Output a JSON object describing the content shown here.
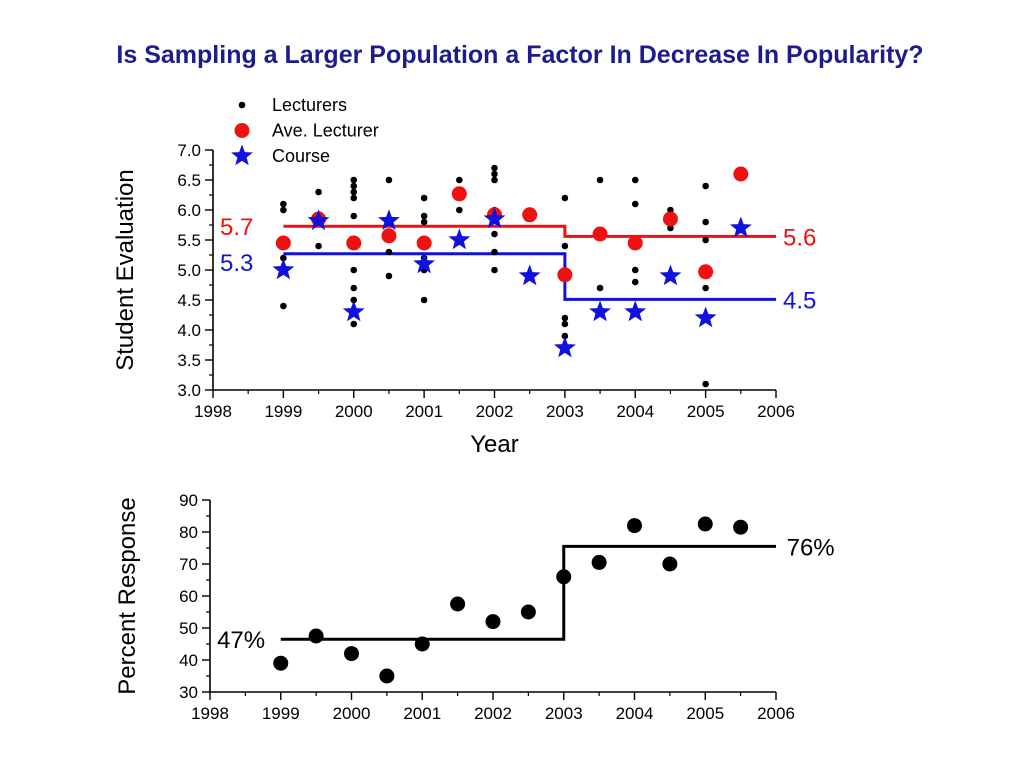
{
  "title": "Is Sampling a Larger Population a Factor In Decrease In Popularity?",
  "chart_data": [
    {
      "type": "scatter",
      "xlabel": "Year",
      "ylabel": "Student Evaluation",
      "xlim": [
        1998,
        2006
      ],
      "ylim": [
        3.0,
        7.0
      ],
      "xticks": [
        "1998",
        "1999",
        "2000",
        "2001",
        "2002",
        "2003",
        "2004",
        "2005",
        "2006"
      ],
      "yticks": [
        "3.0",
        "3.5",
        "4.0",
        "4.5",
        "5.0",
        "5.5",
        "6.0",
        "6.5",
        "7.0"
      ],
      "legend": {
        "placement": "top-left",
        "entries": [
          {
            "label": "Lecturers",
            "marker": "small-dot",
            "color": "#000000"
          },
          {
            "label": "Ave. Lecturer",
            "marker": "dot",
            "color": "#ee1111"
          },
          {
            "label": "Course",
            "marker": "star",
            "color": "#1111dd"
          }
        ]
      },
      "series": [
        {
          "name": "Lecturers",
          "marker": "small-dot",
          "color": "#000000",
          "points": [
            [
              1999,
              6.1
            ],
            [
              1999,
              6.0
            ],
            [
              1999,
              5.2
            ],
            [
              1999,
              4.4
            ],
            [
              1999.5,
              6.3
            ],
            [
              1999.5,
              5.4
            ],
            [
              2000,
              6.5
            ],
            [
              2000,
              6.4
            ],
            [
              2000,
              6.3
            ],
            [
              2000,
              6.2
            ],
            [
              2000,
              5.9
            ],
            [
              2000,
              5.0
            ],
            [
              2000,
              4.7
            ],
            [
              2000,
              4.5
            ],
            [
              2000,
              4.1
            ],
            [
              2000.5,
              6.5
            ],
            [
              2000.5,
              5.3
            ],
            [
              2000.5,
              4.9
            ],
            [
              2001,
              6.2
            ],
            [
              2001,
              5.9
            ],
            [
              2001,
              5.8
            ],
            [
              2001,
              5.2
            ],
            [
              2001,
              5.0
            ],
            [
              2001,
              4.5
            ],
            [
              2001.5,
              6.5
            ],
            [
              2001.5,
              6.0
            ],
            [
              2002,
              6.7
            ],
            [
              2002,
              6.6
            ],
            [
              2002,
              6.5
            ],
            [
              2002,
              6.0
            ],
            [
              2002,
              5.6
            ],
            [
              2002,
              5.3
            ],
            [
              2002,
              5.0
            ],
            [
              2003,
              6.2
            ],
            [
              2003,
              5.4
            ],
            [
              2003,
              4.2
            ],
            [
              2003,
              4.1
            ],
            [
              2003,
              3.9
            ],
            [
              2003.5,
              6.5
            ],
            [
              2003.5,
              4.7
            ],
            [
              2004,
              6.5
            ],
            [
              2004,
              6.1
            ],
            [
              2004,
              5.0
            ],
            [
              2004,
              4.8
            ],
            [
              2004.5,
              6.0
            ],
            [
              2004.5,
              5.7
            ],
            [
              2005,
              6.4
            ],
            [
              2005,
              5.8
            ],
            [
              2005,
              5.5
            ],
            [
              2005,
              4.7
            ],
            [
              2005,
              3.1
            ],
            [
              2005.5,
              5.7
            ]
          ]
        },
        {
          "name": "Ave. Lecturer",
          "marker": "dot",
          "color": "#ee1111",
          "points": [
            [
              1999,
              5.45
            ],
            [
              1999.5,
              5.85
            ],
            [
              2000,
              5.45
            ],
            [
              2000.5,
              5.57
            ],
            [
              2001,
              5.45
            ],
            [
              2001.5,
              6.27
            ],
            [
              2002,
              5.92
            ],
            [
              2002.5,
              5.92
            ],
            [
              2003,
              4.92
            ],
            [
              2003.5,
              5.6
            ],
            [
              2004,
              5.45
            ],
            [
              2004.5,
              5.85
            ],
            [
              2005,
              4.97
            ],
            [
              2005.5,
              6.6
            ]
          ]
        },
        {
          "name": "Course",
          "marker": "star",
          "color": "#1111dd",
          "points": [
            [
              1999,
              5.0
            ],
            [
              1999.5,
              5.82
            ],
            [
              2000,
              4.3
            ],
            [
              2000.5,
              5.82
            ],
            [
              2001,
              5.1
            ],
            [
              2001.5,
              5.5
            ],
            [
              2002,
              5.85
            ],
            [
              2002.5,
              4.9
            ],
            [
              2003,
              3.7
            ],
            [
              2003.5,
              4.3
            ],
            [
              2004,
              4.3
            ],
            [
              2004.5,
              4.9
            ],
            [
              2005,
              4.2
            ],
            [
              2005.5,
              5.7
            ]
          ]
        }
      ],
      "step_lines": [
        {
          "color": "#ee1111",
          "segments": [
            [
              1999,
              2003,
              5.73
            ],
            [
              2003,
              2006,
              5.56
            ]
          ]
        },
        {
          "color": "#1111dd",
          "segments": [
            [
              1999,
              2003,
              5.27
            ],
            [
              2003,
              2006,
              4.51
            ]
          ]
        }
      ],
      "annotations": [
        {
          "text": "5.7",
          "color": "#ee1111",
          "x": 1998.1,
          "y": 5.73,
          "anchor": "start"
        },
        {
          "text": "5.3",
          "color": "#1111dd",
          "x": 1998.1,
          "y": 5.13,
          "anchor": "start"
        },
        {
          "text": "5.6",
          "color": "#ee1111",
          "x": 2006.1,
          "y": 5.56,
          "anchor": "start"
        },
        {
          "text": "4.5",
          "color": "#1111dd",
          "x": 2006.1,
          "y": 4.51,
          "anchor": "start"
        }
      ]
    },
    {
      "type": "scatter",
      "xlabel": "",
      "ylabel": "Percent Response",
      "xlim": [
        1998,
        2006
      ],
      "ylim": [
        30,
        90
      ],
      "xticks": [
        "1998",
        "1999",
        "2000",
        "2001",
        "2002",
        "2003",
        "2004",
        "2005",
        "2006"
      ],
      "yticks": [
        "30",
        "40",
        "50",
        "60",
        "70",
        "80",
        "90"
      ],
      "series": [
        {
          "name": "",
          "marker": "dot",
          "color": "#000000",
          "points": [
            [
              1999,
              39
            ],
            [
              1999.5,
              47.5
            ],
            [
              2000,
              42
            ],
            [
              2000.5,
              35
            ],
            [
              2001,
              45
            ],
            [
              2001.5,
              57.5
            ],
            [
              2002,
              52
            ],
            [
              2002.5,
              55
            ],
            [
              2003,
              66
            ],
            [
              2003.5,
              70.5
            ],
            [
              2004,
              82
            ],
            [
              2004.5,
              70
            ],
            [
              2005,
              82.5
            ],
            [
              2005.5,
              81.5
            ]
          ]
        }
      ],
      "step_lines": [
        {
          "color": "#000000",
          "segments": [
            [
              1999,
              2003,
              46.5
            ],
            [
              2003,
              2006,
              75.5
            ]
          ]
        }
      ],
      "annotations": [
        {
          "text": "47%",
          "color": "#000000",
          "x": 1998.1,
          "y": 46.5,
          "anchor": "start"
        },
        {
          "text": "76%",
          "color": "#000000",
          "x": 2006.15,
          "y": 75.5,
          "anchor": "start"
        }
      ]
    }
  ]
}
